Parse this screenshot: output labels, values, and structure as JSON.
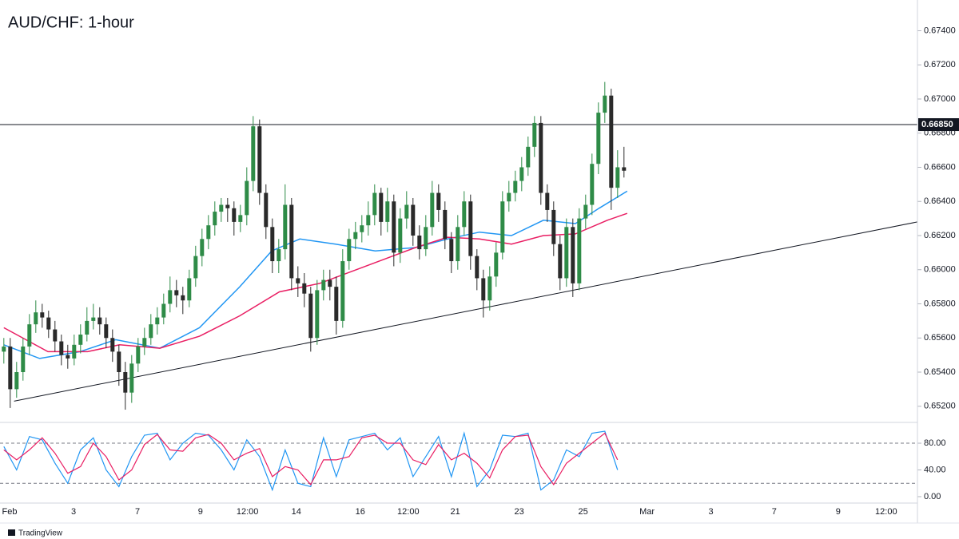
{
  "chart_data": [
    {
      "type": "candlestick",
      "title": "AUD/CHF: 1-hour",
      "xlim": [
        -0.6,
        142.9
      ],
      "ylim": [
        0.6511,
        0.6758
      ],
      "xticks": [
        {
          "value": 0.9,
          "label": "Feb"
        },
        {
          "value": 10.9,
          "label": "3"
        },
        {
          "value": 20.9,
          "label": "7"
        },
        {
          "value": 30.75,
          "label": "9"
        },
        {
          "value": 38.1,
          "label": "12:00"
        },
        {
          "value": 45.75,
          "label": "14"
        },
        {
          "value": 55.75,
          "label": "16"
        },
        {
          "value": 63.25,
          "label": "12:00"
        },
        {
          "value": 70.6,
          "label": "21"
        },
        {
          "value": 80.6,
          "label": "23"
        },
        {
          "value": 90.6,
          "label": "25"
        },
        {
          "value": 100.6,
          "label": "Mar"
        },
        {
          "value": 110.6,
          "label": "3"
        },
        {
          "value": 120.5,
          "label": "7"
        },
        {
          "value": 130.5,
          "label": "9"
        },
        {
          "value": 138,
          "label": "12:00"
        }
      ],
      "yticks": [
        {
          "value": 0.652,
          "label": "0.65200"
        },
        {
          "value": 0.654,
          "label": "0.65400"
        },
        {
          "value": 0.656,
          "label": "0.65600"
        },
        {
          "value": 0.658,
          "label": "0.65800"
        },
        {
          "value": 0.66,
          "label": "0.66000"
        },
        {
          "value": 0.662,
          "label": "0.66200"
        },
        {
          "value": 0.664,
          "label": "0.66400"
        },
        {
          "value": 0.666,
          "label": "0.66600"
        },
        {
          "value": 0.668,
          "label": "0.66800"
        },
        {
          "value": 0.67,
          "label": "0.67000"
        },
        {
          "value": 0.672,
          "label": "0.67200"
        },
        {
          "value": 0.674,
          "label": "0.67400"
        }
      ],
      "up_color": "#2e8b47",
      "down_color": "#2a2a2a",
      "open": [
        0.6552,
        0.6555,
        0.653,
        0.654,
        0.6555,
        0.6568,
        0.6575,
        0.6572,
        0.6565,
        0.6558,
        0.655,
        0.6548,
        0.6556,
        0.6562,
        0.657,
        0.6572,
        0.6568,
        0.656,
        0.6552,
        0.654,
        0.6528,
        0.6545,
        0.6555,
        0.656,
        0.6568,
        0.6572,
        0.658,
        0.6588,
        0.6585,
        0.6582,
        0.6595,
        0.6608,
        0.6618,
        0.6626,
        0.6634,
        0.6638,
        0.6636,
        0.6628,
        0.6632,
        0.6652,
        0.6684,
        0.6645,
        0.6625,
        0.6605,
        0.6612,
        0.6638,
        0.6595,
        0.6592,
        0.6586,
        0.656,
        0.6588,
        0.6594,
        0.659,
        0.657,
        0.6605,
        0.6618,
        0.6622,
        0.6626,
        0.6632,
        0.6645,
        0.6628,
        0.664,
        0.661,
        0.663,
        0.6638,
        0.662,
        0.6612,
        0.6625,
        0.6645,
        0.6635,
        0.6618,
        0.6605,
        0.6625,
        0.664,
        0.6608,
        0.6595,
        0.6582,
        0.6596,
        0.661,
        0.664,
        0.6645,
        0.6652,
        0.666,
        0.6672,
        0.6686,
        0.6645,
        0.6635,
        0.6615,
        0.6595,
        0.6625,
        0.6592,
        0.663,
        0.6638,
        0.6662,
        0.6692,
        0.6702,
        0.6648,
        0.666
      ],
      "high": [
        0.656,
        0.656,
        0.6546,
        0.656,
        0.6574,
        0.6582,
        0.658,
        0.6576,
        0.657,
        0.6562,
        0.6556,
        0.6562,
        0.6568,
        0.6578,
        0.658,
        0.6578,
        0.6572,
        0.6565,
        0.6556,
        0.6546,
        0.655,
        0.656,
        0.6566,
        0.6574,
        0.6578,
        0.6586,
        0.6596,
        0.6594,
        0.659,
        0.66,
        0.6614,
        0.6624,
        0.6632,
        0.664,
        0.6642,
        0.6642,
        0.664,
        0.6638,
        0.666,
        0.669,
        0.6688,
        0.665,
        0.663,
        0.6618,
        0.665,
        0.6642,
        0.6602,
        0.6598,
        0.659,
        0.6594,
        0.66,
        0.66,
        0.6596,
        0.6612,
        0.6624,
        0.6628,
        0.6632,
        0.664,
        0.665,
        0.6648,
        0.6648,
        0.6644,
        0.6636,
        0.6646,
        0.6642,
        0.6626,
        0.6632,
        0.6652,
        0.665,
        0.664,
        0.6622,
        0.6632,
        0.6646,
        0.6644,
        0.6612,
        0.66,
        0.6602,
        0.6616,
        0.6646,
        0.6652,
        0.6658,
        0.6666,
        0.6678,
        0.669,
        0.669,
        0.665,
        0.664,
        0.662,
        0.663,
        0.663,
        0.6636,
        0.6644,
        0.6668,
        0.6698,
        0.671,
        0.6706,
        0.667,
        0.6672
      ],
      "low": [
        0.6545,
        0.6519,
        0.6525,
        0.6535,
        0.655,
        0.6563,
        0.6566,
        0.656,
        0.6552,
        0.6544,
        0.6542,
        0.6544,
        0.6551,
        0.6558,
        0.6565,
        0.6562,
        0.6554,
        0.6546,
        0.6532,
        0.6518,
        0.6522,
        0.654,
        0.655,
        0.6556,
        0.6562,
        0.6568,
        0.6575,
        0.6578,
        0.6574,
        0.6578,
        0.659,
        0.6602,
        0.6612,
        0.662,
        0.6628,
        0.6628,
        0.662,
        0.6622,
        0.6626,
        0.6646,
        0.6638,
        0.6618,
        0.6598,
        0.6598,
        0.6606,
        0.6588,
        0.6584,
        0.6578,
        0.6552,
        0.6556,
        0.6582,
        0.6582,
        0.6562,
        0.6566,
        0.66,
        0.6612,
        0.6616,
        0.662,
        0.6626,
        0.662,
        0.6622,
        0.6602,
        0.6604,
        0.6624,
        0.6614,
        0.6606,
        0.6608,
        0.662,
        0.6628,
        0.6612,
        0.6598,
        0.66,
        0.662,
        0.66,
        0.6588,
        0.6572,
        0.6576,
        0.659,
        0.6606,
        0.6634,
        0.664,
        0.6646,
        0.6655,
        0.6666,
        0.6638,
        0.6628,
        0.6608,
        0.6588,
        0.659,
        0.6584,
        0.6588,
        0.6624,
        0.6632,
        0.6656,
        0.6686,
        0.6635,
        0.6642,
        0.6654
      ],
      "close": [
        0.6555,
        0.653,
        0.654,
        0.6555,
        0.6568,
        0.6575,
        0.6572,
        0.6565,
        0.6558,
        0.655,
        0.6548,
        0.6556,
        0.6562,
        0.657,
        0.6572,
        0.6568,
        0.656,
        0.6552,
        0.654,
        0.6528,
        0.6545,
        0.6555,
        0.656,
        0.6568,
        0.6572,
        0.658,
        0.6588,
        0.6585,
        0.6582,
        0.6595,
        0.6608,
        0.6618,
        0.6626,
        0.6634,
        0.6638,
        0.6636,
        0.6628,
        0.6632,
        0.6652,
        0.6684,
        0.6645,
        0.6625,
        0.6605,
        0.6612,
        0.6638,
        0.6595,
        0.6592,
        0.6586,
        0.656,
        0.6588,
        0.6594,
        0.659,
        0.657,
        0.6605,
        0.6618,
        0.6622,
        0.6626,
        0.6632,
        0.6645,
        0.6628,
        0.664,
        0.661,
        0.663,
        0.6638,
        0.662,
        0.6612,
        0.6625,
        0.6645,
        0.6635,
        0.6618,
        0.6605,
        0.6625,
        0.664,
        0.6608,
        0.6595,
        0.6582,
        0.6596,
        0.661,
        0.664,
        0.6645,
        0.6652,
        0.666,
        0.6672,
        0.6686,
        0.6645,
        0.6635,
        0.6615,
        0.6595,
        0.6625,
        0.6592,
        0.663,
        0.6638,
        0.6662,
        0.6692,
        0.6702,
        0.6648,
        0.666,
        0.6658
      ],
      "series": [
        {
          "color": "#2196f3",
          "x": [
            0,
            5.6,
            11.9,
            17.5,
            24.4,
            30.6,
            36.9,
            41.9,
            46.3,
            51.9,
            58.1,
            64.4,
            69.4,
            74.4,
            79.4,
            84.4,
            89.4,
            93.1,
            97.5
          ],
          "values": [
            0.6556,
            0.6548,
            0.6552,
            0.6559,
            0.6554,
            0.6566,
            0.659,
            0.6611,
            0.6618,
            0.6615,
            0.6611,
            0.6613,
            0.6618,
            0.6622,
            0.662,
            0.6629,
            0.6627,
            0.6636,
            0.6646
          ]
        },
        {
          "color": "#e91e63",
          "x": [
            0,
            6.9,
            13.1,
            18.1,
            24.4,
            30.6,
            36.9,
            43.1,
            49.4,
            54.4,
            59.4,
            64.4,
            69.4,
            74.4,
            79.4,
            84.4,
            89.4,
            94.4,
            97.5
          ],
          "values": [
            0.6566,
            0.6552,
            0.6552,
            0.6556,
            0.6554,
            0.6561,
            0.6573,
            0.6587,
            0.6592,
            0.6599,
            0.6606,
            0.6613,
            0.6619,
            0.6618,
            0.6615,
            0.662,
            0.6621,
            0.6629,
            0.6633
          ]
        }
      ],
      "hline": {
        "value": 0.6685,
        "label": "0.66850"
      },
      "trendline": {
        "x": [
          1.6,
          142.9
        ],
        "y": [
          0.6523,
          0.6628
        ]
      },
      "footer": "TradingView"
    },
    {
      "type": "line",
      "xlim": [
        -0.6,
        142.9
      ],
      "ylim": [
        -9.6,
        109.9
      ],
      "yticks": [
        {
          "value": 0,
          "label": "0.00"
        },
        {
          "value": 40,
          "label": "40.00"
        },
        {
          "value": 80,
          "label": "80.00"
        }
      ],
      "levels": [
        80,
        20
      ],
      "x": [
        0,
        2,
        4,
        6,
        8,
        10,
        12,
        14,
        16,
        18,
        20,
        22,
        24,
        26,
        28,
        30,
        32,
        34,
        36,
        38,
        40,
        42,
        44,
        46,
        48,
        50,
        52,
        54,
        56,
        58,
        60,
        62,
        64,
        66,
        68,
        70,
        72,
        74,
        76,
        78,
        80,
        82,
        84,
        86,
        88,
        90,
        92,
        94,
        96
      ],
      "series": [
        {
          "color": "#2196f3",
          "values": [
            75,
            40,
            90,
            85,
            50,
            20,
            70,
            88,
            40,
            15,
            60,
            92,
            95,
            55,
            80,
            95,
            92,
            70,
            40,
            85,
            60,
            10,
            70,
            20,
            15,
            88,
            30,
            85,
            90,
            95,
            70,
            88,
            30,
            60,
            90,
            30,
            95,
            15,
            40,
            92,
            90,
            95,
            10,
            25,
            70,
            60,
            95,
            98,
            40
          ]
        },
        {
          "color": "#e91e63",
          "values": [
            70,
            55,
            70,
            88,
            65,
            35,
            45,
            80,
            60,
            25,
            40,
            78,
            93,
            70,
            68,
            88,
            93,
            80,
            55,
            65,
            72,
            30,
            45,
            40,
            18,
            55,
            55,
            60,
            88,
            92,
            80,
            80,
            55,
            48,
            78,
            55,
            65,
            50,
            28,
            70,
            90,
            92,
            45,
            18,
            50,
            65,
            80,
            95,
            55
          ]
        }
      ]
    }
  ]
}
